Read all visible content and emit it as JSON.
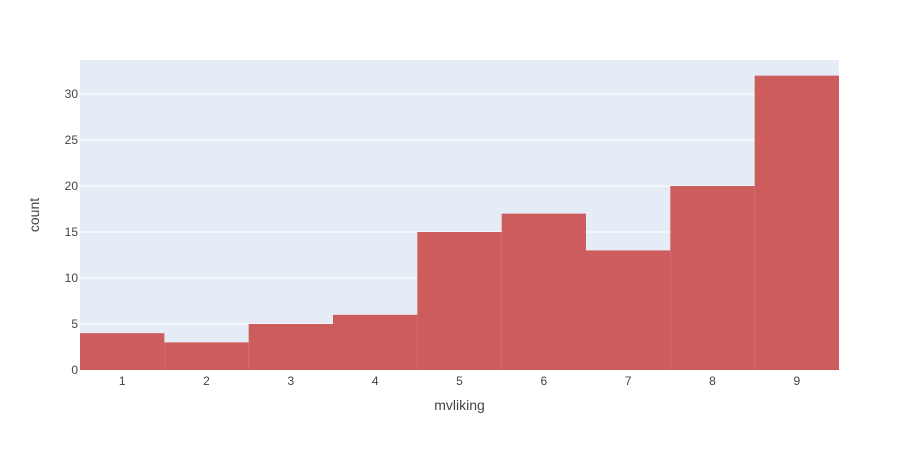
{
  "chart_data": {
    "type": "bar",
    "categories": [
      "1",
      "2",
      "3",
      "4",
      "5",
      "6",
      "7",
      "8",
      "9"
    ],
    "values": [
      4,
      3,
      5,
      6,
      15,
      17,
      13,
      20,
      32
    ],
    "title": "",
    "xlabel": "mvliking",
    "ylabel": "count",
    "ylim": [
      0,
      33.7
    ],
    "yticks": [
      0,
      5,
      10,
      15,
      20,
      25,
      30
    ],
    "grid": true,
    "legend": "none",
    "bar_gap": 0
  },
  "colors": {
    "bar": "#cd5c5c",
    "plot_background": "#e5ecf6",
    "grid": "#ffffff",
    "text": "#444444"
  }
}
